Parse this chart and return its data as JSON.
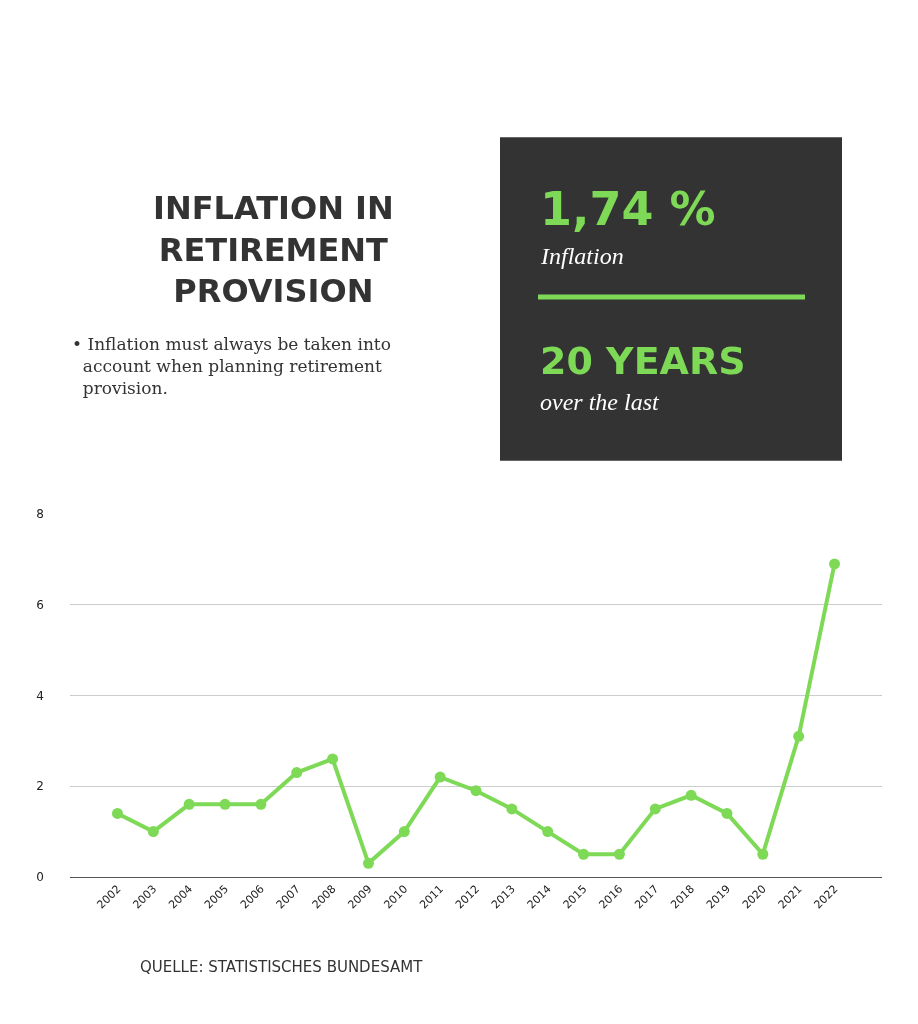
{
  "chart_data": {
    "type": "line",
    "title": "INFLATION IN RETIREMENT PROVISION",
    "subtitle": "• Inflation must always be taken into account when planning retirement provision.",
    "categories": [
      "2002",
      "2003",
      "2004",
      "2005",
      "2006",
      "2007",
      "2008",
      "2009",
      "2010",
      "2011",
      "2012",
      "2013",
      "2014",
      "2015",
      "2016",
      "2017",
      "2018",
      "2019",
      "2020",
      "2021",
      "2022"
    ],
    "series": [
      {
        "color": "#7ed957",
        "values": [
          1.4,
          1.0,
          1.6,
          1.6,
          1.6,
          2.3,
          2.6,
          0.3,
          1.0,
          2.2,
          1.9,
          1.5,
          1.0,
          0.5,
          0.5,
          1.5,
          1.8,
          1.4,
          0.5,
          3.1,
          6.9
        ]
      }
    ],
    "ylim": [
      0,
      8
    ],
    "yticks": [
      0,
      2,
      4,
      6,
      8
    ],
    "grid": "y",
    "marker": "circle",
    "line_style": "solid",
    "annotations": [
      "1,74 %",
      "Inflation",
      "20 YEARS",
      "over the last",
      "QUELLE: STATISTISCHES BUNDESAMT"
    ]
  }
}
